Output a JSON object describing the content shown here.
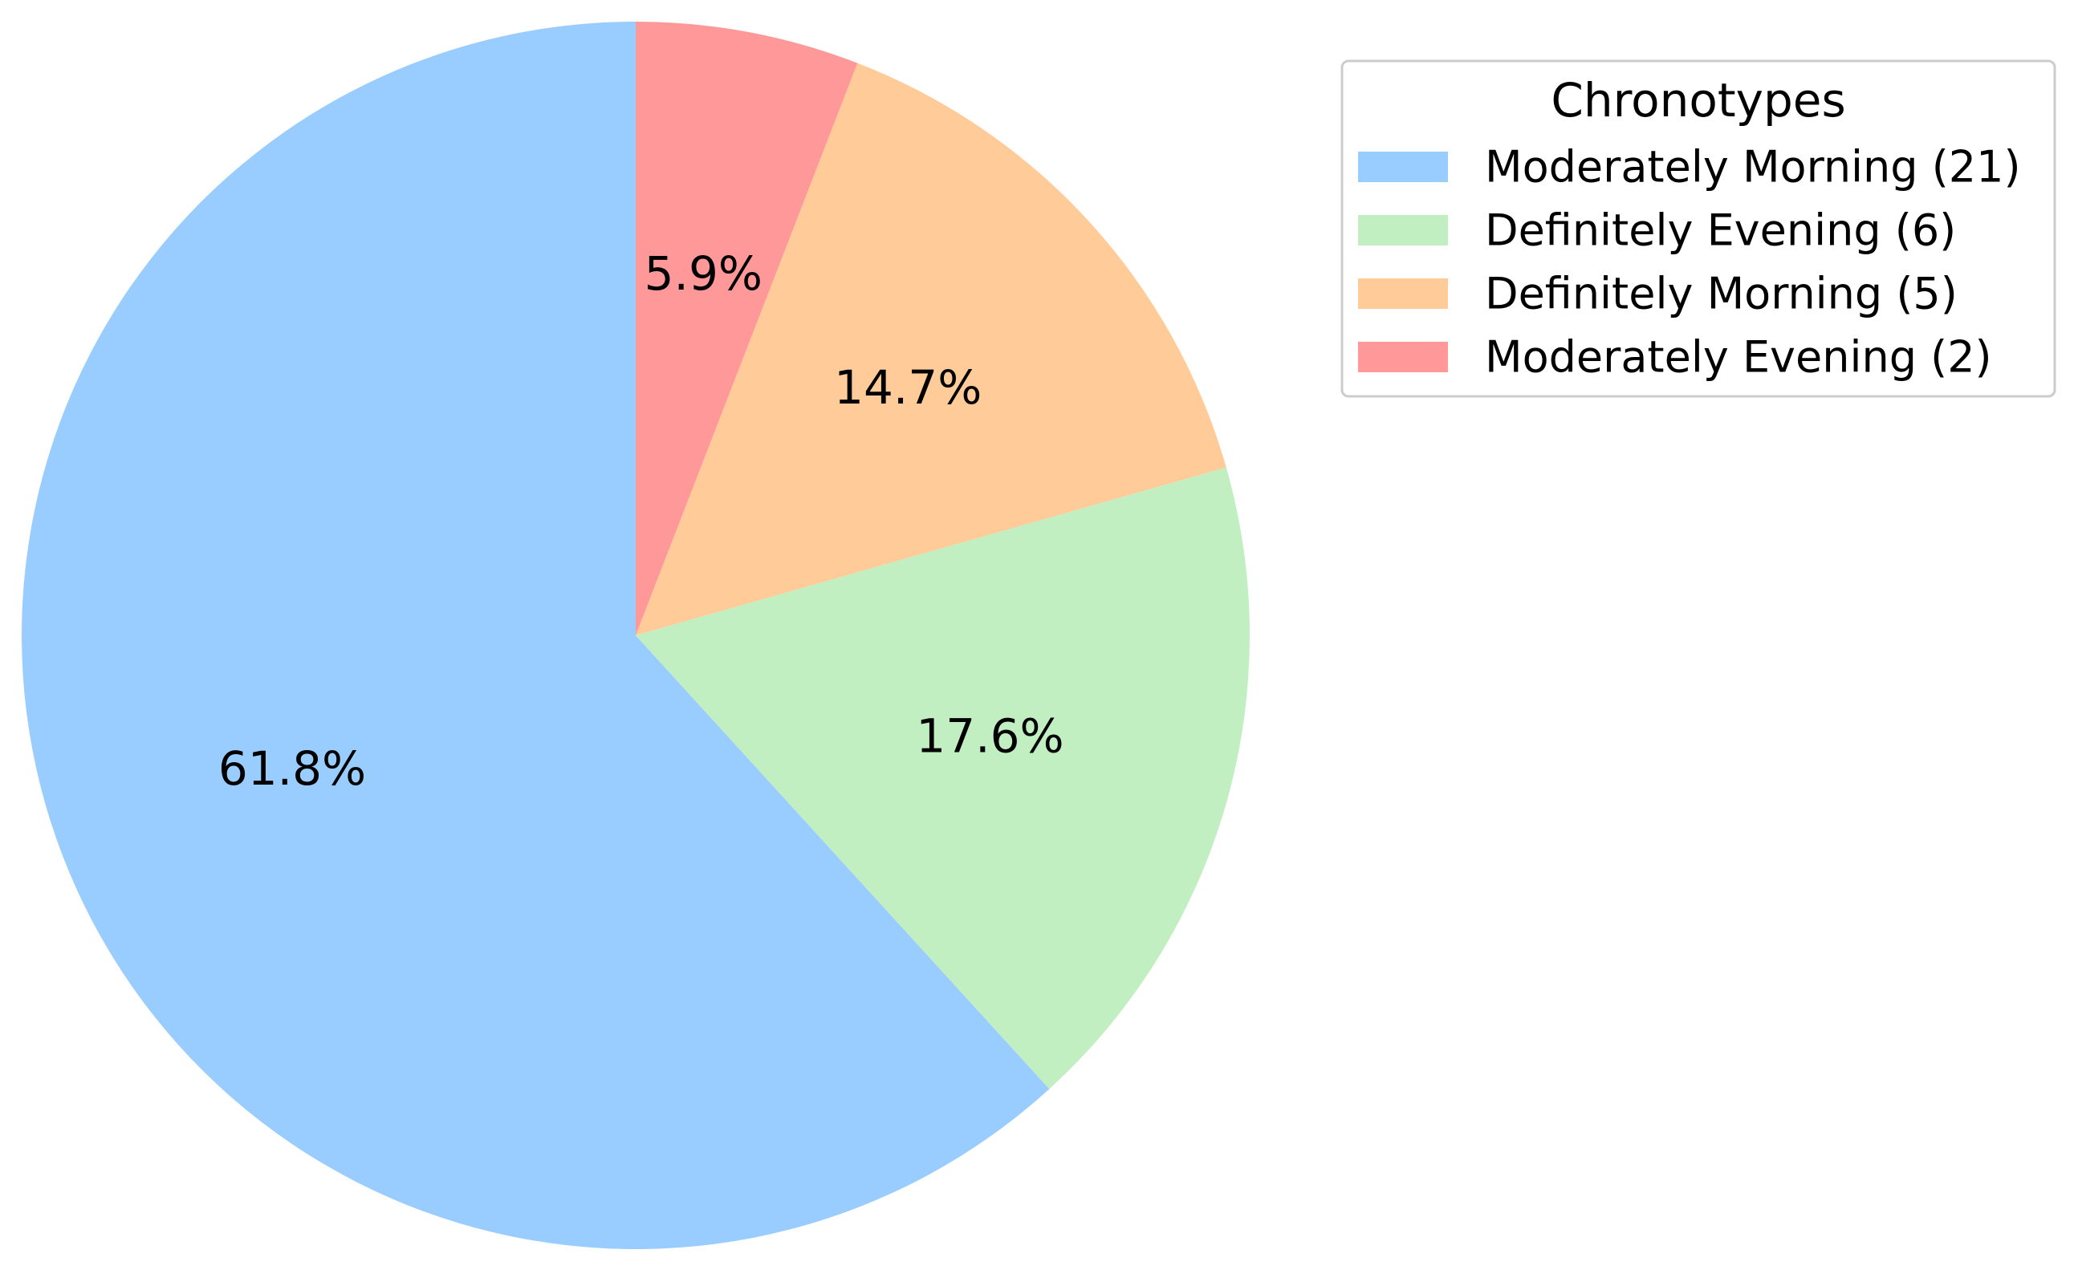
{
  "chart_data": {
    "type": "pie",
    "legend_title": "Chronotypes",
    "legend_placement": "top-right",
    "start_angle": "top",
    "direction": "counterclockwise",
    "slices": [
      {
        "label": "Moderately Morning (21)",
        "value": 21,
        "pct_label": "61.8%",
        "color": "#99CCFF"
      },
      {
        "label": "Definitely Evening (6)",
        "value": 6,
        "pct_label": "17.6%",
        "color": "#C2EFC2"
      },
      {
        "label": "Definitely Morning (5)",
        "value": 5,
        "pct_label": "14.7%",
        "color": "#FFCC99"
      },
      {
        "label": "Moderately Evening (2)",
        "value": 2,
        "pct_label": "5.9%",
        "color": "#FF9999"
      }
    ]
  }
}
